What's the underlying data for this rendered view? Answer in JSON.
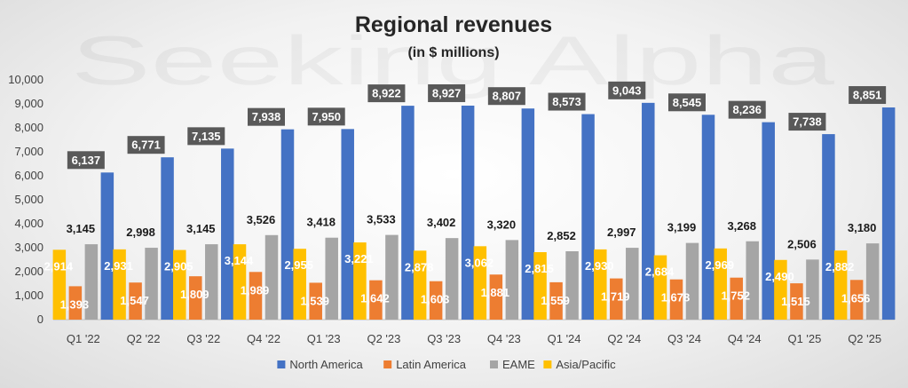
{
  "chart_data": {
    "type": "bar",
    "title": "Regional revenues",
    "subtitle": "(in $ millions)",
    "watermark": "Seeking Alpha",
    "categories": [
      "Q1 '22",
      "Q2 '22",
      "Q3 '22",
      "Q4 '22",
      "Q1 '23",
      "Q2 '23",
      "Q3 '23",
      "Q4 '23",
      "Q1 '24",
      "Q2 '24",
      "Q3 '24",
      "Q4 '24",
      "Q1 '25",
      "Q2 '25"
    ],
    "series": [
      {
        "name": "Asia/Pacific",
        "color": "#FFC000",
        "values": [
          2914,
          2931,
          2905,
          3144,
          2955,
          3221,
          2878,
          3062,
          2815,
          2930,
          2684,
          2969,
          2490,
          2882
        ]
      },
      {
        "name": "Latin America",
        "color": "#ED7D31",
        "values": [
          1393,
          1547,
          1809,
          1989,
          1539,
          1642,
          1603,
          1881,
          1559,
          1719,
          1678,
          1752,
          1515,
          1656
        ]
      },
      {
        "name": "EAME",
        "color": "#A5A5A5",
        "values": [
          3145,
          2998,
          3145,
          3526,
          3418,
          3533,
          3402,
          3320,
          2852,
          2997,
          3199,
          3268,
          2506,
          3180
        ]
      },
      {
        "name": "North America",
        "color": "#4472C4",
        "values": [
          6137,
          6771,
          7135,
          7938,
          7950,
          8922,
          8927,
          8807,
          8573,
          9043,
          8545,
          8236,
          7738,
          8851
        ]
      }
    ],
    "legend": [
      "North America",
      "Latin America",
      "EAME",
      "Asia/Pacific"
    ],
    "ylim": [
      0,
      10000
    ],
    "yticks": [
      "0",
      "1,000",
      "2,000",
      "3,000",
      "4,000",
      "5,000",
      "6,000",
      "7,000",
      "8,000",
      "9,000",
      "10,000"
    ],
    "xlabel": "",
    "ylabel": "",
    "legend_position": "bottom"
  }
}
